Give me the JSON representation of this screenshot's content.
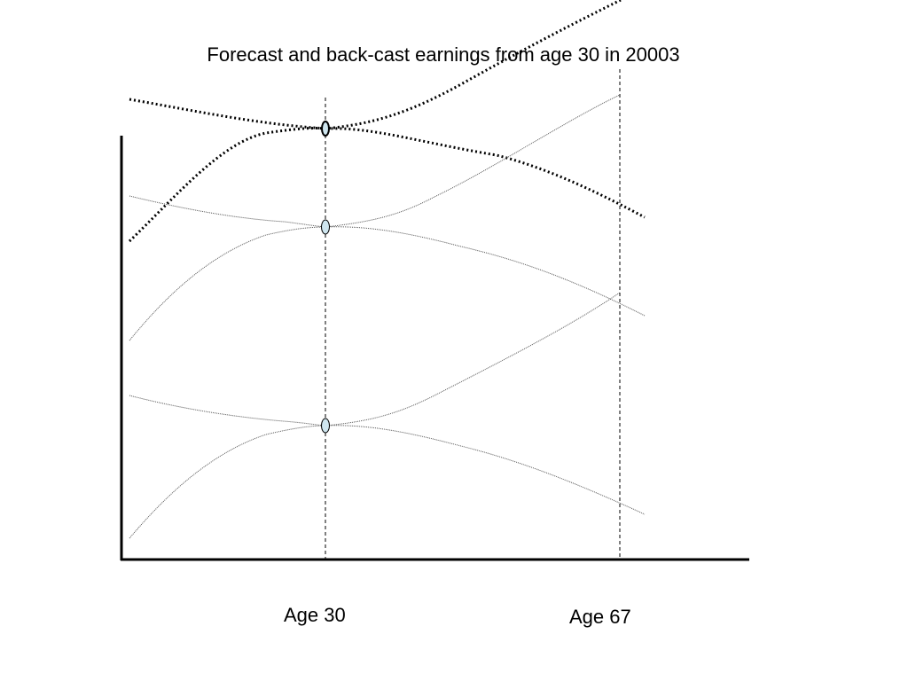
{
  "title": "Forecast and back-cast earnings from age 30 in 20003",
  "labels": {
    "age_30": "Age 30",
    "age_67": "Age 67"
  },
  "colors": {
    "axis": "#000000",
    "curve_thin": "#707070",
    "curve_bold": "#000000",
    "node_fill": "#cfe6ef",
    "node_stroke": "#000000"
  }
}
